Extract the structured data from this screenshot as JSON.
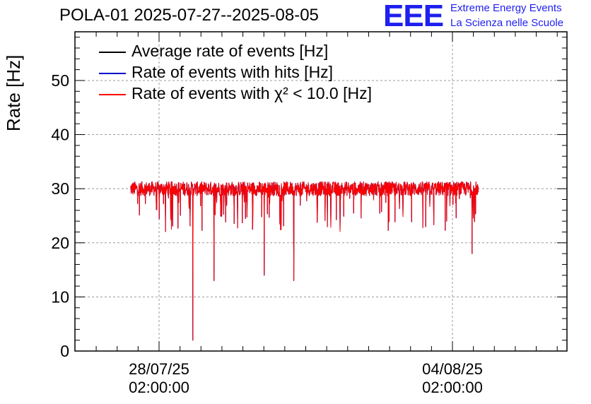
{
  "title": "POLA-01 2025-07-27--2025-08-05",
  "logo": {
    "mark": "EEE",
    "line1": "Extreme Energy Events",
    "line2": "La Scienza nelle Scuole"
  },
  "chart_data": {
    "type": "line",
    "title": "POLA-01 2025-07-27--2025-08-05",
    "xlabel": "",
    "ylabel": "Rate [Hz]",
    "ylim": [
      0,
      59
    ],
    "yticks": [
      0,
      10,
      20,
      30,
      40,
      50
    ],
    "x_range": [
      "2025-07-27",
      "2025-08-05"
    ],
    "xticks": [
      {
        "date": "2025-07-28T02:00:00",
        "line1": "28/07/25",
        "line2": "02:00:00"
      },
      {
        "date": "2025-08-04T02:00:00",
        "line1": "04/08/25",
        "line2": "02:00:00"
      }
    ],
    "grid": true,
    "legend_position": "top-left",
    "series": [
      {
        "name": "Average rate of events [Hz]",
        "color": "#000000",
        "typical": 30,
        "min": 2,
        "max": 33
      },
      {
        "name": "Rate of events with hits [Hz]",
        "color": "#0000cc",
        "typical": 30,
        "min": 2,
        "max": 33
      },
      {
        "name": "Rate of events with χ² < 10.0 [Hz]",
        "color": "#ff0000",
        "typical": 30,
        "min": 2,
        "max": 33
      }
    ],
    "notable_dips": [
      {
        "date": "2025-07-28",
        "value": 2
      },
      {
        "date": "2025-07-28",
        "value": 13
      },
      {
        "date": "2025-07-30",
        "value": 14
      },
      {
        "date": "2025-07-31",
        "value": 13
      },
      {
        "date": "2025-08-04",
        "value": 18
      }
    ]
  }
}
